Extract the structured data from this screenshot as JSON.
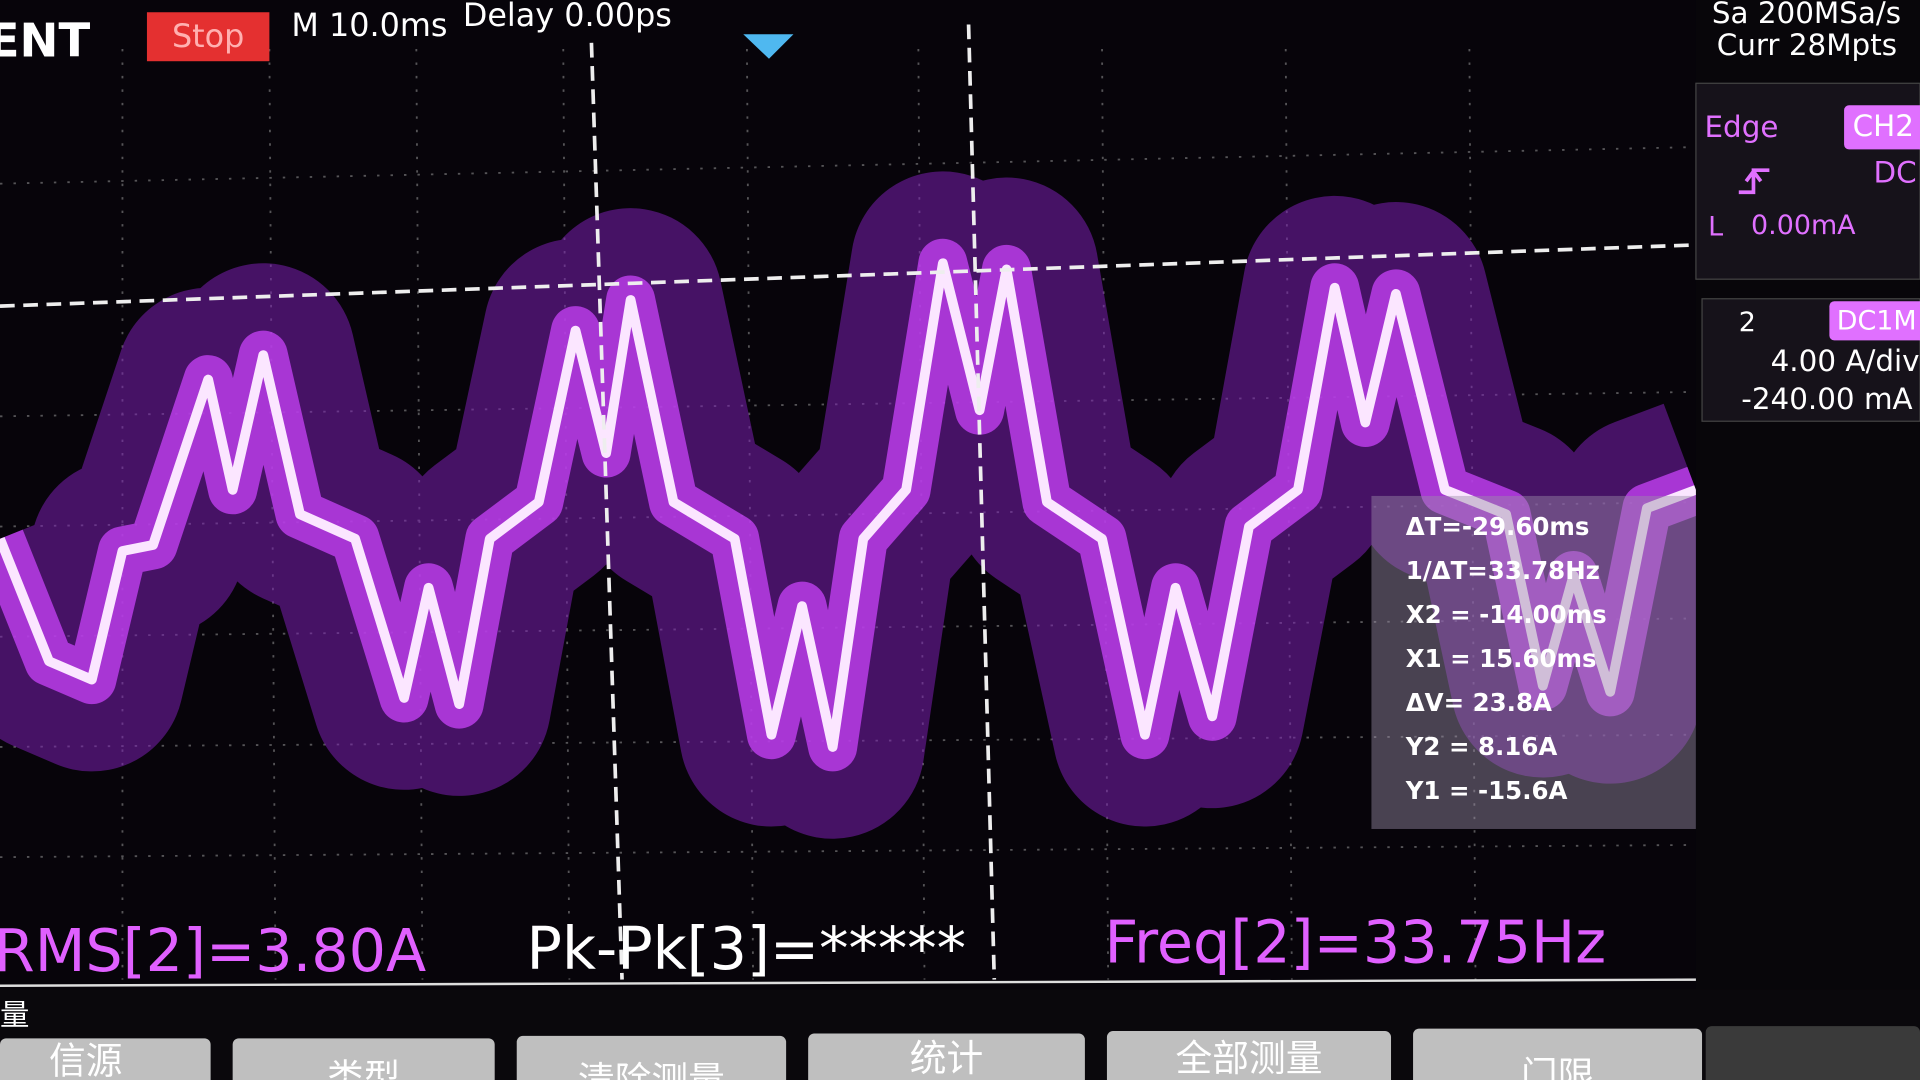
{
  "header": {
    "brand": "ENT",
    "status": "Stop",
    "timebase": "M 10.0ms",
    "delay": "Delay 0.00ps",
    "sample_rate": "Sa 200MSa/s",
    "memory": "Curr 28Mpts"
  },
  "trigger": {
    "type": "Edge",
    "source": "CH2",
    "coupling": "DC",
    "level_label": "L",
    "level": "0.00mA"
  },
  "channel": {
    "number": "2",
    "coupling": "DC1M",
    "scale": "4.00 A/div",
    "offset": "-240.00 mA"
  },
  "cursors": [
    "ΔT=-29.60ms",
    "1/ΔT=33.78Hz",
    "X2 = -14.00ms",
    "X1 = 15.60ms",
    "ΔV= 23.8A",
    "Y2 = 8.16A",
    "Y1 = -15.6A"
  ],
  "measurements": [
    "RMS[2]=3.80A",
    "Pk-Pk[3]=*****",
    "Freq[2]=33.75Hz"
  ],
  "menu": {
    "title": "量",
    "buttons": [
      "信源",
      "类型",
      "清除测量",
      "统计",
      "全部测量",
      "门限"
    ]
  }
}
